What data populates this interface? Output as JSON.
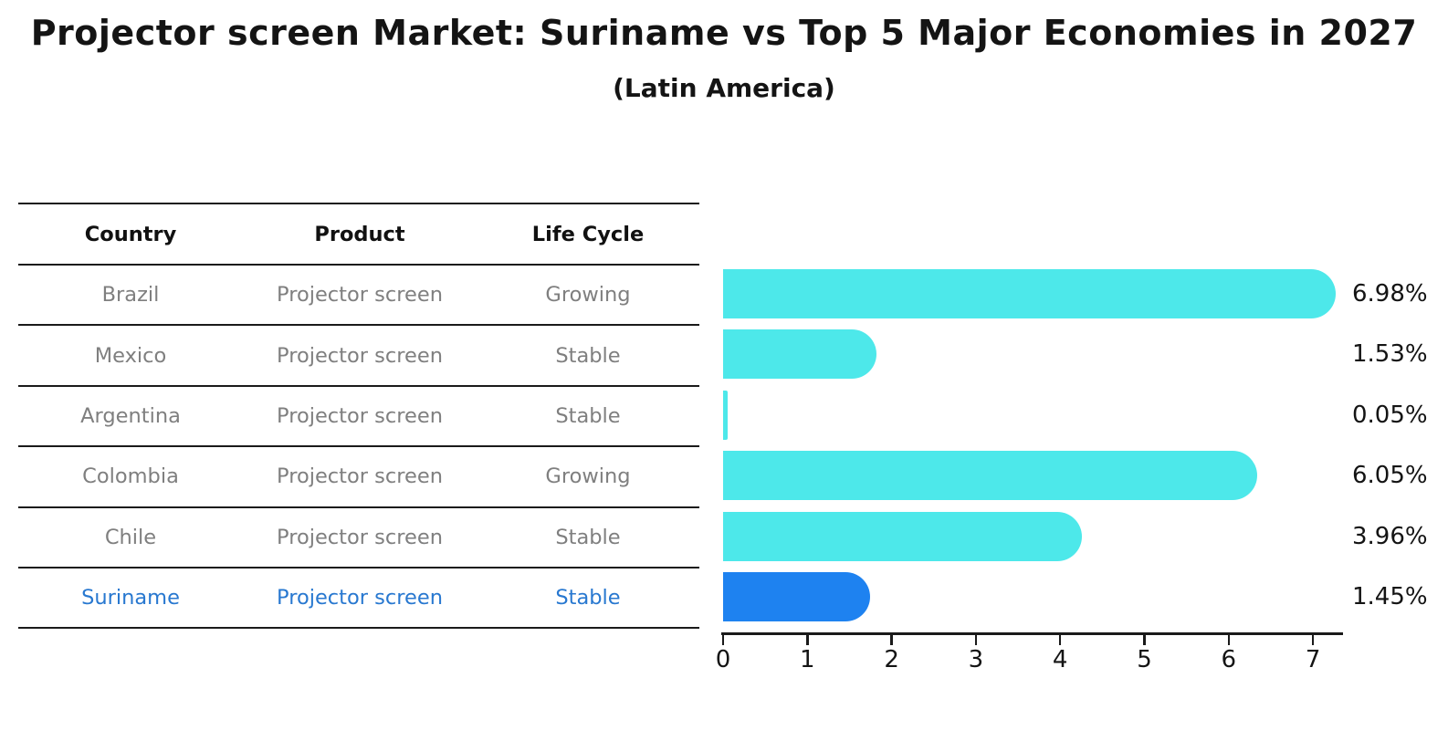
{
  "header": {
    "title": "Projector screen Market: Suriname vs Top 5 Major Economies in 2027",
    "subtitle": "(Latin America)"
  },
  "table": {
    "columns": [
      "Country",
      "Product",
      "Life Cycle"
    ],
    "rows": [
      {
        "country": "Brazil",
        "product": "Projector screen",
        "life_cycle": "Growing",
        "highlight": false
      },
      {
        "country": "Mexico",
        "product": "Projector screen",
        "life_cycle": "Stable",
        "highlight": false
      },
      {
        "country": "Argentina",
        "product": "Projector screen",
        "life_cycle": "Stable",
        "highlight": false
      },
      {
        "country": "Colombia",
        "product": "Projector screen",
        "life_cycle": "Growing",
        "highlight": false
      },
      {
        "country": "Chile",
        "product": "Projector screen",
        "life_cycle": "Stable",
        "highlight": false
      },
      {
        "country": "Suriname",
        "product": "Projector screen",
        "life_cycle": "Stable",
        "highlight": true
      }
    ]
  },
  "chart_data": {
    "type": "bar",
    "orientation": "horizontal",
    "title": "Projector screen Market: Suriname vs Top 5 Major Economies in 2027",
    "subtitle": "(Latin America)",
    "categories": [
      "Brazil",
      "Mexico",
      "Argentina",
      "Colombia",
      "Chile",
      "Suriname"
    ],
    "values": [
      6.98,
      1.53,
      0.05,
      6.05,
      3.96,
      1.45
    ],
    "value_labels": [
      "6.98%",
      "1.53%",
      "0.05%",
      "6.05%",
      "3.96%",
      "1.45%"
    ],
    "xlabel": "",
    "ylabel": "",
    "xlim": [
      0,
      7
    ],
    "x_ticks": [
      "0",
      "1",
      "2",
      "3",
      "4",
      "5",
      "6",
      "7"
    ],
    "grid": false,
    "legend": false,
    "highlight_category": "Suriname",
    "colors": {
      "bar": "#4DE8EA",
      "highlight_bar": "#1E82F0",
      "highlight_text": "#2878D0",
      "row_text": "#7F7F7F",
      "axis": "#1A1A1A"
    }
  }
}
